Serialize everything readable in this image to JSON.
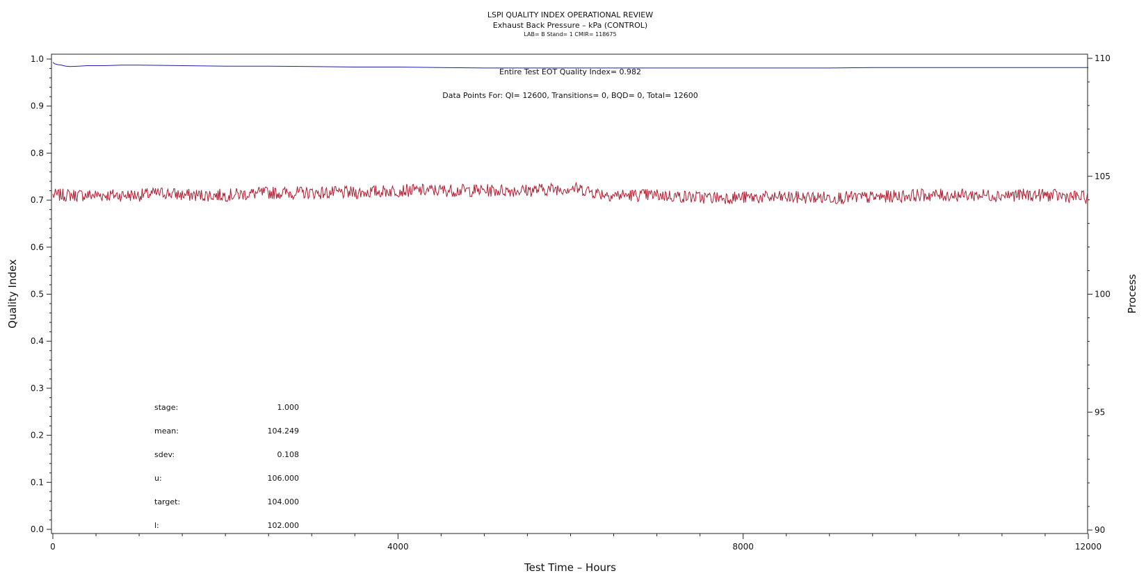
{
  "chart_data": {
    "type": "line",
    "title": "LSPI QUALITY INDEX OPERATIONAL REVIEW",
    "subtitle": "Exhaust Back Pressure – kPa (CONTROL)",
    "subtitle2": "LAB= B Stand= 1 CMIR= 118675",
    "xlabel": "Test Time – Hours",
    "ylabel_left": "Quality Index",
    "ylabel_right": "Process",
    "xlim": [
      0,
      12000
    ],
    "ylim_left": [
      0,
      1
    ],
    "ylim_right": [
      90,
      110
    ],
    "x_ticks": [
      0,
      4000,
      8000,
      12000
    ],
    "x_tick_labels": [
      "0",
      "4000",
      "8000",
      "12000"
    ],
    "y_left_ticks": [
      0.0,
      0.1,
      0.2,
      0.3,
      0.4,
      0.5,
      0.6,
      0.7,
      0.8,
      0.9,
      1.0
    ],
    "y_left_tick_labels": [
      "0.0",
      "0.1",
      "0.2",
      "0.3",
      "0.4",
      "0.5",
      "0.6",
      "0.7",
      "0.8",
      "0.9",
      "1.0"
    ],
    "y_right_ticks": [
      90,
      95,
      100,
      105,
      110
    ],
    "y_right_tick_labels": [
      "90",
      "95",
      "100",
      "105",
      "110"
    ],
    "grid": false,
    "series": [
      {
        "axis": "left",
        "color": "#1c1ca8",
        "x": [
          0,
          20,
          60,
          100,
          150,
          200,
          300,
          400,
          600,
          800,
          1000,
          1500,
          2000,
          2500,
          3000,
          3500,
          4000,
          4500,
          5000,
          5500,
          6000,
          6500,
          7000,
          7500,
          8000,
          8500,
          9000,
          9500,
          10000,
          10500,
          11000,
          11500,
          12000
        ],
        "values": [
          0.993,
          0.99,
          0.988,
          0.987,
          0.985,
          0.984,
          0.985,
          0.986,
          0.986,
          0.987,
          0.987,
          0.986,
          0.985,
          0.985,
          0.984,
          0.983,
          0.983,
          0.982,
          0.981,
          0.981,
          0.981,
          0.981,
          0.981,
          0.981,
          0.981,
          0.981,
          0.981,
          0.982,
          0.982,
          0.982,
          0.982,
          0.982,
          0.982
        ]
      },
      {
        "axis": "right",
        "color": "#b01c30",
        "x": [
          0,
          500,
          1000,
          1300,
          1500,
          2000,
          2500,
          3000,
          3500,
          4000,
          4500,
          5000,
          5500,
          6000,
          6200,
          6300,
          6500,
          7000,
          7500,
          8000,
          8500,
          9000,
          9500,
          10000,
          10500,
          11000,
          11500,
          12000
        ],
        "values": [
          104.2,
          104.2,
          104.2,
          104.3,
          104.2,
          104.2,
          104.3,
          104.3,
          104.3,
          104.4,
          104.4,
          104.4,
          104.4,
          104.5,
          104.4,
          104.3,
          104.2,
          104.2,
          104.1,
          104.1,
          104.1,
          104.1,
          104.1,
          104.2,
          104.2,
          104.2,
          104.2,
          104.1
        ]
      }
    ],
    "annotations": {
      "qi_text": "Entire Test EOT Quality Index=   0.982",
      "points_text": "Data Points For: QI=  12600, Transitions=      0, BQD=      0, Total=  12600"
    },
    "stats": [
      {
        "label": "stage:",
        "value": "1.000"
      },
      {
        "label": "mean:",
        "value": "104.249"
      },
      {
        "label": "sdev:",
        "value": "0.108"
      },
      {
        "label": "u:",
        "value": "106.000"
      },
      {
        "label": "target:",
        "value": "104.000"
      },
      {
        "label": "l:",
        "value": "102.000"
      }
    ]
  }
}
